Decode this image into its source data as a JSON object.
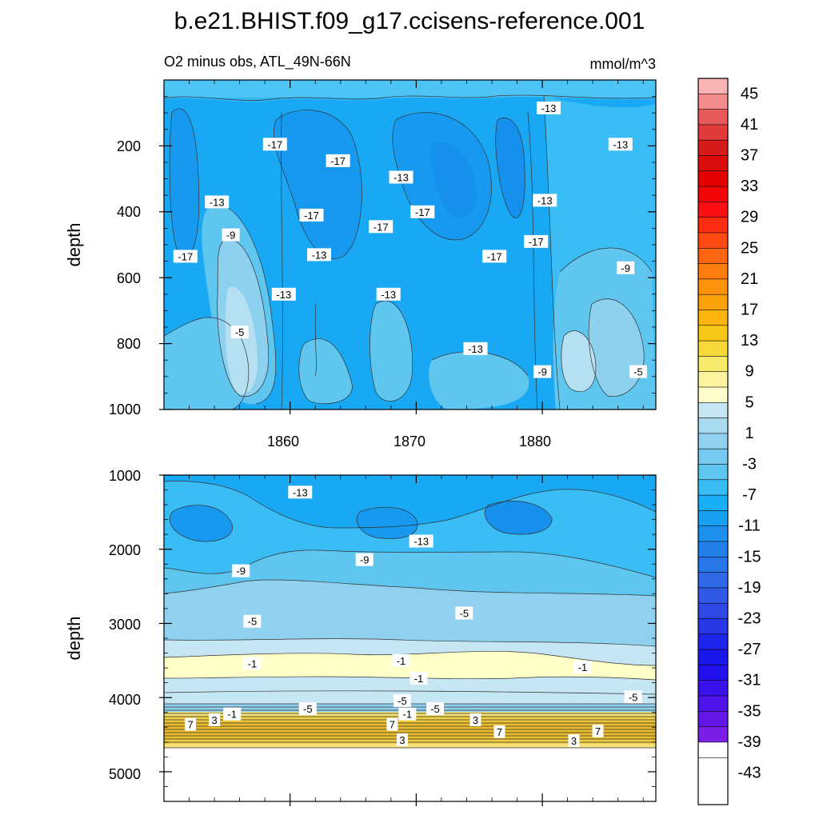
{
  "chart_data": {
    "type": "heatmap",
    "title": "b.e21.BHIST.f09_g17.ccisens-reference.001",
    "subtitle_left": "O2 minus obs, ATL_49N-66N",
    "subtitle_right": "mmol/m^3",
    "colorbar": {
      "levels": [
        -43,
        -41,
        -39,
        -37,
        -35,
        -33,
        -31,
        -29,
        -27,
        -25,
        -23,
        -21,
        -19,
        -17,
        -15,
        -13,
        -11,
        -9,
        -7,
        -5,
        -3,
        -1,
        1,
        3,
        5,
        7,
        9,
        11,
        13,
        15,
        17,
        19,
        21,
        23,
        25,
        27,
        29,
        31,
        33,
        35,
        37,
        39,
        41,
        43,
        45
      ],
      "labels": [
        "45",
        "41",
        "37",
        "33",
        "29",
        "25",
        "21",
        "17",
        "13",
        "9",
        "5",
        "1",
        "-3",
        "-7",
        "-11",
        "-15",
        "-19",
        "-23",
        "-27",
        "-31",
        "-35",
        "-39",
        "-43"
      ]
    },
    "panels": [
      {
        "name": "upper",
        "ylabel": "depth",
        "xlim": [
          1850,
          1889
        ],
        "ylim": [
          1000,
          0
        ],
        "xticks": [
          "1860",
          "1870",
          "1880"
        ],
        "yticks": [
          "200",
          "400",
          "600",
          "800",
          "1000"
        ],
        "contour_labels": [
          {
            "text": "-17",
            "x": 1858.8,
            "y": 195
          },
          {
            "text": "-17",
            "x": 1863.8,
            "y": 245
          },
          {
            "text": "-13",
            "x": 1868.8,
            "y": 295
          },
          {
            "text": "-13",
            "x": 1854.2,
            "y": 370
          },
          {
            "text": "-17",
            "x": 1861.7,
            "y": 410
          },
          {
            "text": "-17",
            "x": 1867.2,
            "y": 445
          },
          {
            "text": "-17",
            "x": 1870.5,
            "y": 400
          },
          {
            "text": "-9",
            "x": 1855.3,
            "y": 470
          },
          {
            "text": "-17",
            "x": 1851.7,
            "y": 535
          },
          {
            "text": "-13",
            "x": 1862.3,
            "y": 530
          },
          {
            "text": "-17",
            "x": 1876.2,
            "y": 535
          },
          {
            "text": "-17",
            "x": 1879.5,
            "y": 490
          },
          {
            "text": "-13",
            "x": 1880.2,
            "y": 365
          },
          {
            "text": "-13",
            "x": 1880.5,
            "y": 85
          },
          {
            "text": "-13",
            "x": 1886.2,
            "y": 195
          },
          {
            "text": "-13",
            "x": 1859.5,
            "y": 650
          },
          {
            "text": "-13",
            "x": 1867.8,
            "y": 650
          },
          {
            "text": "-9",
            "x": 1886.6,
            "y": 570
          },
          {
            "text": "-5",
            "x": 1856.0,
            "y": 765
          },
          {
            "text": "-13",
            "x": 1874.7,
            "y": 815
          },
          {
            "text": "-9",
            "x": 1880.0,
            "y": 885
          },
          {
            "text": "-5",
            "x": 1887.6,
            "y": 885
          }
        ]
      },
      {
        "name": "lower",
        "ylabel": "depth",
        "xlim": [
          1850,
          1889
        ],
        "ylim": [
          5400,
          1000
        ],
        "yticks": [
          "1000",
          "2000",
          "3000",
          "4000",
          "5000"
        ],
        "contour_labels": [
          {
            "text": "-13",
            "x": 1860.8,
            "y": 1230
          },
          {
            "text": "-13",
            "x": 1870.4,
            "y": 1890
          },
          {
            "text": "-9",
            "x": 1865.9,
            "y": 2140
          },
          {
            "text": "-9",
            "x": 1856.1,
            "y": 2290
          },
          {
            "text": "-5",
            "x": 1857.0,
            "y": 2970
          },
          {
            "text": "-5",
            "x": 1873.8,
            "y": 2860
          },
          {
            "text": "-1",
            "x": 1857.0,
            "y": 3540
          },
          {
            "text": "-1",
            "x": 1868.8,
            "y": 3500
          },
          {
            "text": "-1",
            "x": 1870.2,
            "y": 3740
          },
          {
            "text": "-1",
            "x": 1883.2,
            "y": 3590
          },
          {
            "text": "-5",
            "x": 1868.9,
            "y": 4040
          },
          {
            "text": "-5",
            "x": 1887.2,
            "y": 3990
          },
          {
            "text": "-5",
            "x": 1861.4,
            "y": 4150
          },
          {
            "text": "-1",
            "x": 1855.4,
            "y": 4220
          },
          {
            "text": "-1",
            "x": 1869.3,
            "y": 4220
          },
          {
            "text": "-5",
            "x": 1871.5,
            "y": 4150
          },
          {
            "text": "3",
            "x": 1854.0,
            "y": 4300
          },
          {
            "text": "7",
            "x": 1852.1,
            "y": 4360
          },
          {
            "text": "7",
            "x": 1868.1,
            "y": 4360
          },
          {
            "text": "3",
            "x": 1874.7,
            "y": 4300
          },
          {
            "text": "7",
            "x": 1876.6,
            "y": 4460
          },
          {
            "text": "7",
            "x": 1884.4,
            "y": 4450
          },
          {
            "text": "3",
            "x": 1868.9,
            "y": 4570
          },
          {
            "text": "3",
            "x": 1882.5,
            "y": 4580
          }
        ]
      }
    ]
  }
}
